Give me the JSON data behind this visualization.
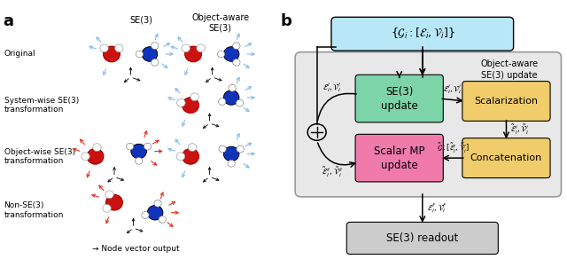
{
  "panel_a_label": "a",
  "panel_b_label": "b",
  "bg_color": "#ffffff",
  "row_labels": [
    "Original",
    "System-wise SE(3)\ntransformation",
    "Object-wise SE(3)\ntransformation",
    "Non-SE(3)\ntransformation"
  ],
  "col_headers_se3": "SE(3)",
  "col_headers_obj": "Object-aware\nSE(3)",
  "node_vector_label": "→ Node vector output",
  "box_top_color": "#b8e8f8",
  "box_se3_label": "SE(3)\nupdate",
  "box_se3_color": "#7dd4a8",
  "box_scalar_label": "Scalar MP\nupdate",
  "box_scalar_color": "#f07aaa",
  "box_scalarize_label": "Scalarization",
  "box_concat_label": "Concatenation",
  "box_yellow_color": "#f0cc6a",
  "box_readout_label": "SE(3) readout",
  "box_readout_color": "#cccccc",
  "box_outer_color": "#e8e8e8",
  "box_outer_edge": "#999999"
}
